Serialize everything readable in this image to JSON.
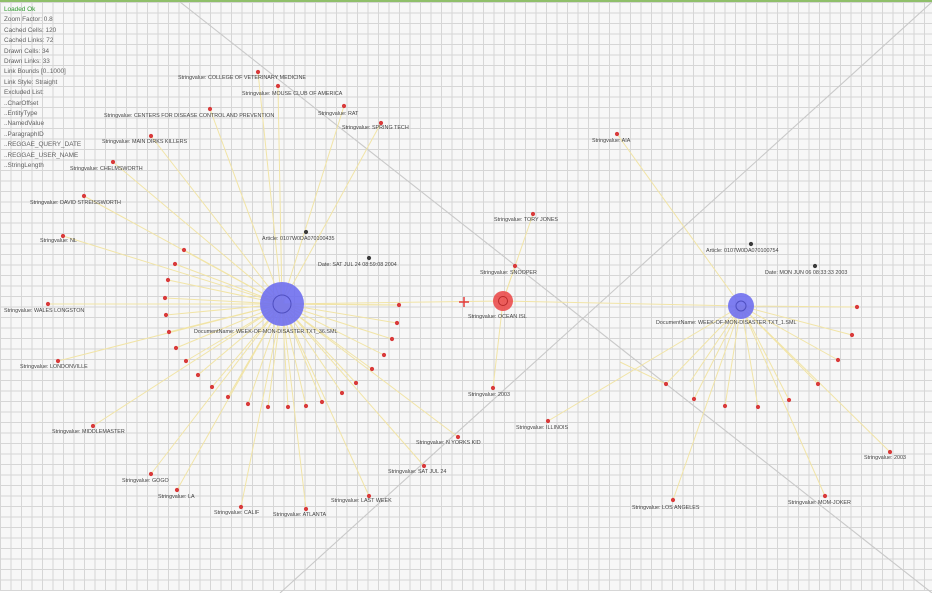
{
  "stats": {
    "status": "Loaded Ok",
    "lines": [
      "Zoom Factor: 0.8",
      "Cached Cells: 120",
      "Cached Links: 72",
      "Drawn Cells: 34",
      "Drawn Links: 33",
      "Link Bounds [0..1000]",
      "Link Style: Straight",
      "Excluded List:",
      "..CharOffset",
      "..EntityType",
      "..NamedValue",
      "..ParagraphID",
      "..REGGAE_QUERY_DATE",
      "..REGGAE_USER_NAME",
      "..StringLength"
    ]
  },
  "colors": {
    "grid": "#d6d6d6",
    "edge": "#f1e4a6",
    "node": "#d93a3a",
    "hub": "#6f6fee",
    "selected": "#ea4c4c"
  },
  "graph": {
    "hubs": [
      {
        "label": "DocumentName: WEEK-OF-MON-DISASTER.TXT_36.SML"
      },
      {
        "label": "DocumentName: WEEK-OF-MON-DISASTER.TXT_1.SML"
      }
    ],
    "selected": {
      "label": "Stringvalue: OCEAN ISL"
    },
    "labels": [
      "Stringvalue: COLLEGE OF VETERINARY MEDICINE",
      "Stringvalue: MOUSE CLUB OF AMERICA",
      "Stringvalue: RAT",
      "Stringvalue: CENTERS FOR DISEASE CONTROL AND PREVENTION",
      "Stringvalue: SPRING TECH",
      "Stringvalue: MAIN DIRKS KILLERS",
      "Stringvalue: CHELMSWORTH",
      "Stringvalue: DAVID STREISSWORTH",
      "Stringvalue: NL",
      "Stringvalue: WALES LONGSTON",
      "Stringvalue: LONDONVILLE",
      "Stringvalue: MIDDLEMASTER",
      "Stringvalue: GOGO",
      "Stringvalue: LA",
      "Stringvalue: CALIF",
      "Stringvalue: ATLANTA",
      "Stringvalue: LAST WEEK",
      "Stringvalue: SAT JUL 24",
      "Stringvalue: N YORKS KID",
      "Stringvalue: 2003",
      "Stringvalue: ILLINOIS",
      "Stringvalue: TORY JONES",
      "Stringvalue: SNOOPER",
      "Stringvalue: AIA",
      "Stringvalue: LOS ANGELES",
      "Stringvalue: MOM-JOKER",
      "Stringvalue: 2003",
      "Article: 0107W0DA070100435",
      "Date: SAT JUL 24 08:59:08 2004",
      "Article: 0107W0DA070100754",
      "Date: MON JUN 06 08:33:33 2003"
    ]
  }
}
